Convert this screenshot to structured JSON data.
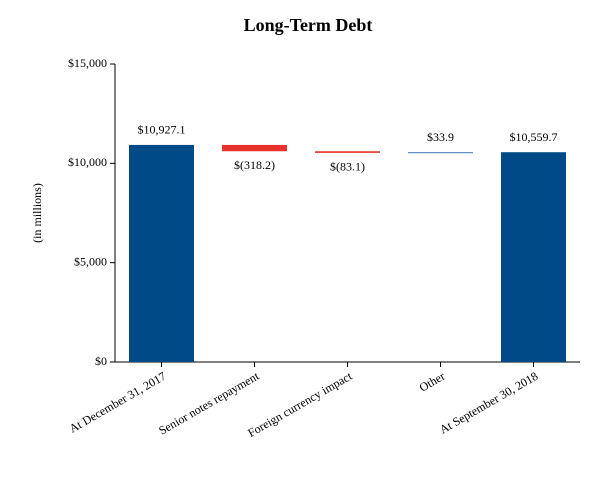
{
  "chart_data": {
    "type": "waterfall",
    "title": "Long-Term Debt",
    "y_label": "(in millions)",
    "categories": [
      "At December 31, 2017",
      "Senior notes repayment",
      "Foreign currency impact",
      "Other",
      "At September 30, 2018"
    ],
    "values": [
      10927.1,
      -318.2,
      -83.1,
      33.9,
      10559.7
    ],
    "value_labels": [
      "$10,927.1",
      "$(318.2)",
      "$(83.1)",
      "$33.9",
      "$10,559.7"
    ],
    "colors": [
      "#004b87",
      "#e8312a",
      "#e8312a",
      "#3a78b5",
      "#004b87"
    ],
    "ylim": [
      0,
      15000
    ],
    "yticks": [
      {
        "value": 0,
        "label": "$0"
      },
      {
        "value": 5000,
        "label": "$5,000"
      },
      {
        "value": 10000,
        "label": "$10,000"
      },
      {
        "value": 15000,
        "label": "$15,000"
      }
    ]
  }
}
